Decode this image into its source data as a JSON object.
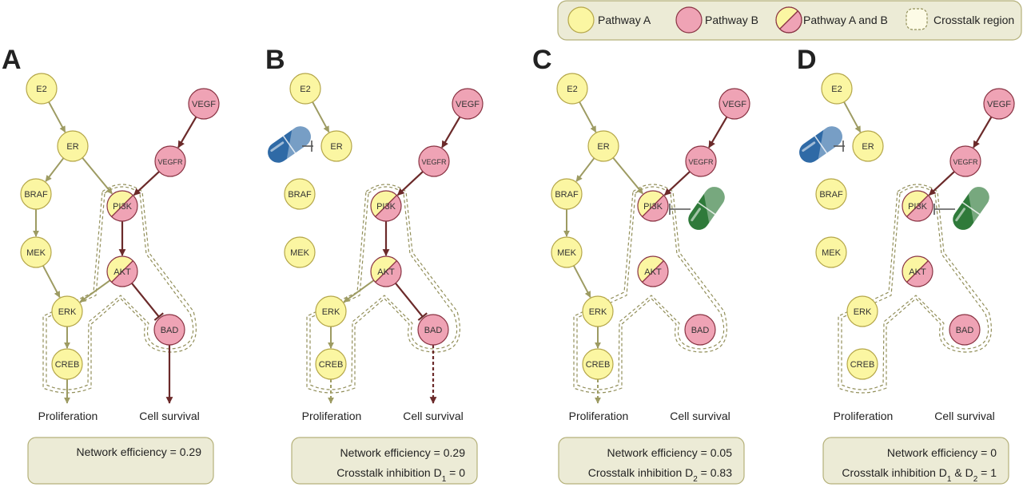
{
  "colors": {
    "pathway_a_fill": "#fbf6a2",
    "pathway_a_stroke": "#b5a74a",
    "pathway_b_fill": "#efa3b5",
    "pathway_b_stroke": "#8a3444",
    "arrow_a": "#9d9b62",
    "arrow_b": "#6b2a2a",
    "box_fill": "#ecebd6",
    "box_stroke": "#b5b17a",
    "crosstalk_stroke": "#928f5a",
    "drug_blue": "#2f6aa6",
    "drug_green": "#2f7a3a"
  },
  "legend": {
    "items": [
      {
        "label": "Pathway A",
        "icon": "yellow-circle"
      },
      {
        "label": "Pathway B",
        "icon": "pink-circle"
      },
      {
        "label": "Pathway A and B",
        "icon": "split-circle"
      },
      {
        "label": "Crosstalk region",
        "icon": "dashed-square"
      }
    ]
  },
  "node_labels": {
    "E2": "E2",
    "ER": "ER",
    "BRAF": "BRAF",
    "MEK": "MEK",
    "ERK": "ERK",
    "CREB": "CREB",
    "VEGF": "VEGF",
    "VEGFR": "VEGFR",
    "PI3K": "PI3K",
    "AKT": "AKT",
    "BAD": "BAD"
  },
  "outcomes": {
    "proliferation": "Proliferation",
    "survival": "Cell survival"
  },
  "panels": [
    {
      "letter": "A",
      "drug_er": false,
      "drug_pi3k": false,
      "box_lines": [
        [
          {
            "t": "Network efficiency = 0.29"
          }
        ]
      ]
    },
    {
      "letter": "B",
      "drug_er": true,
      "drug_pi3k": false,
      "box_lines": [
        [
          {
            "t": "Network efficiency = 0.29"
          }
        ],
        [
          {
            "t": "Crosstalk inhibition D"
          },
          {
            "t": "1",
            "sub": true
          },
          {
            "t": " = 0"
          }
        ]
      ]
    },
    {
      "letter": "C",
      "drug_er": false,
      "drug_pi3k": true,
      "box_lines": [
        [
          {
            "t": "Network efficiency = 0.05"
          }
        ],
        [
          {
            "t": "Crosstalk inhibition D"
          },
          {
            "t": "2",
            "sub": true
          },
          {
            "t": " = 0.83"
          }
        ]
      ]
    },
    {
      "letter": "D",
      "drug_er": true,
      "drug_pi3k": true,
      "box_lines": [
        [
          {
            "t": "Network efficiency = 0"
          }
        ],
        [
          {
            "t": "Crosstalk inhibition D"
          },
          {
            "t": "1",
            "sub": true
          },
          {
            "t": " & D"
          },
          {
            "t": "2",
            "sub": true
          },
          {
            "t": " = 1"
          }
        ]
      ]
    }
  ]
}
